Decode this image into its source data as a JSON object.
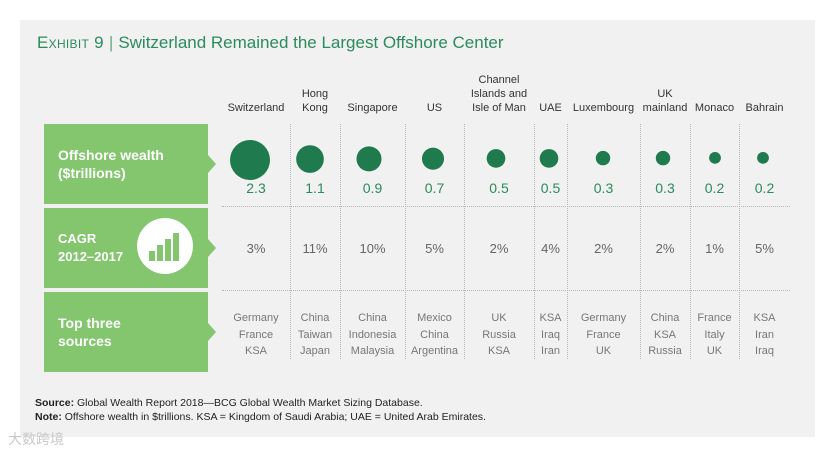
{
  "title": {
    "exhibit": "Exhibit 9",
    "separator": "|",
    "text": "Switzerland Remained the Largest Offshore Center"
  },
  "row_labels": {
    "wealth": "Offshore wealth\n($trillions)",
    "cagr": "CAGR\n2012–2017",
    "sources": "Top three\nsources"
  },
  "chart_data": {
    "type": "bubble",
    "title": "Switzerland Remained the Largest Offshore Center",
    "unit": "$trillions",
    "categories": [
      "Switzerland",
      "Hong Kong",
      "Singapore",
      "US",
      "Channel Islands and Isle of Man",
      "UAE",
      "Luxembourg",
      "UK mainland",
      "Monaco",
      "Bahrain"
    ],
    "category_labels": [
      "Switzerland",
      "Hong\nKong",
      "Singapore",
      "US",
      "Channel\nIslands and\nIsle of Man",
      "UAE",
      "Luxembourg",
      "UK\nmainland",
      "Monaco",
      "Bahrain"
    ],
    "offshore_wealth": [
      2.3,
      1.1,
      0.9,
      0.7,
      0.5,
      0.5,
      0.3,
      0.3,
      0.2,
      0.2
    ],
    "offshore_wealth_labels": [
      "2.3",
      "1.1",
      "0.9",
      "0.7",
      "0.5",
      "0.5",
      "0.3",
      "0.3",
      "0.2",
      "0.2"
    ],
    "cagr_2012_2017": [
      "3%",
      "11%",
      "10%",
      "5%",
      "2%",
      "4%",
      "2%",
      "2%",
      "1%",
      "5%"
    ],
    "top_three_sources": [
      [
        "Germany",
        "France",
        "KSA"
      ],
      [
        "China",
        "Taiwan",
        "Japan"
      ],
      [
        "China",
        "Indonesia",
        "Malaysia"
      ],
      [
        "Mexico",
        "China",
        "Argentina"
      ],
      [
        "UK",
        "Russia",
        "KSA"
      ],
      [
        "KSA",
        "Iraq",
        "Iran"
      ],
      [
        "Germany",
        "France",
        "UK"
      ],
      [
        "China",
        "KSA",
        "Russia"
      ],
      [
        "France",
        "Italy",
        "UK"
      ],
      [
        "KSA",
        "Iran",
        "Iraq"
      ]
    ]
  },
  "colors": {
    "bubble": "#1f7a4d",
    "label_bg": "#83c66e",
    "title": "#2b8b5c"
  },
  "icons": {
    "cagr": "bar-chart-icon"
  },
  "footer": {
    "source_label": "Source:",
    "source_text": " Global Wealth Report 2018—BCG Global Wealth Market Sizing Database.",
    "note_label": "Note:",
    "note_text": " Offshore wealth in $trillions. KSA = Kingdom of Saudi Arabia; UAE = United Arab Emirates."
  },
  "watermark": "大数跨境"
}
